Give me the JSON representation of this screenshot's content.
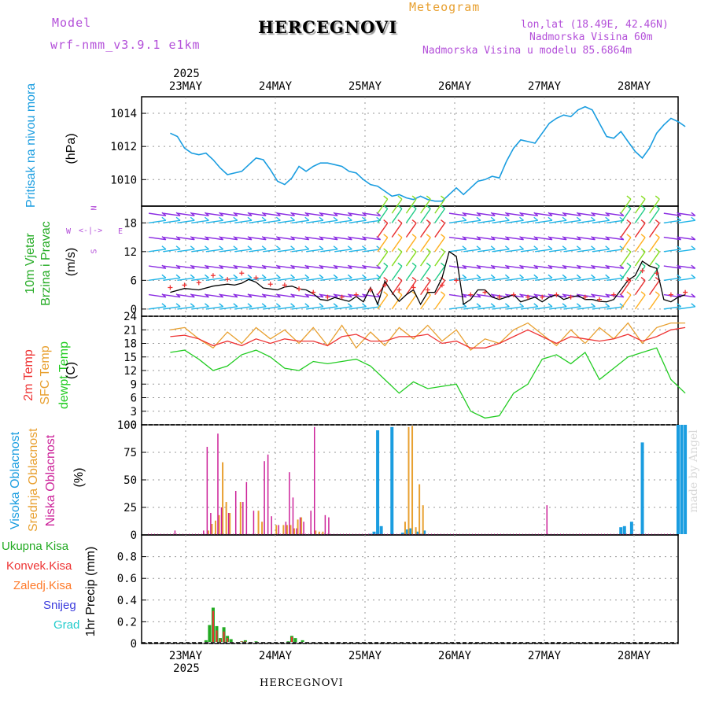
{
  "header": {
    "model_label": "Model",
    "model_name": "wrf-nmm_v3.9.1 e1km",
    "meteogram_label": "Meteogram",
    "station": "HERCEGNOVI",
    "lonlat": "lon,lat (18.49E, 42.46N)",
    "altitude": "Nadmorska Visina 60m",
    "model_altitude": "Nadmorska Visina u modelu 85.6864m",
    "footer_station": "HERCEGNOVI",
    "watermark": "made by Angel"
  },
  "dates": {
    "year": "2025",
    "labels": [
      "23MAY",
      "24MAY",
      "25MAY",
      "26MAY",
      "27MAY",
      "28MAY"
    ]
  },
  "panels": {
    "pressure": {
      "name": "Pritisak na nivou mora",
      "unit": "(hPa)"
    },
    "wind": {
      "name_line1": "10m Vjetar",
      "name_line2": "Brzina i Pravac",
      "unit": "(m/s)",
      "compass": [
        "N",
        "W",
        "E",
        "S"
      ]
    },
    "temp": {
      "name_2m": "2m Temp",
      "name_sfc": "SFC Temp",
      "name_dew": "dewpt Temp",
      "unit": "(C)"
    },
    "cloud": {
      "name_high": "Visoka Oblacnost",
      "name_mid": "Srednja Oblacnost",
      "name_low": "Niska Oblacnost",
      "unit": "(%)"
    },
    "precip": {
      "legend": [
        "Ukupna Kisa",
        "Konvek.Kisa",
        "Zaledj.Kisa",
        "Snijeg",
        "Grad"
      ],
      "unit": "1hr Precip (mm)"
    }
  },
  "colors": {
    "pressure": "#1a9de0",
    "temp2m": "#ee3333",
    "sfc": "#e8a030",
    "dew": "#22cc22",
    "high": "#1a9de0",
    "mid": "#e8a030",
    "low": "#cc2299",
    "total": "#22aa22",
    "konv": "#ee3333",
    "zaled": "#ff7a2a",
    "snow": "#3b3bdd",
    "grad": "#22cccc",
    "wind_purple": "#8a2be2",
    "wind_cyan": "#21b5e8",
    "windspd": "#000000",
    "gust": "#ee3333"
  },
  "chart_data": [
    {
      "type": "line",
      "title": "Pritisak na nivou mora",
      "ylabel": "(hPa)",
      "ylim": [
        1008.4,
        1015
      ],
      "yticks": [
        1010,
        1012,
        1014
      ],
      "series": [
        {
          "name": "Pritisak na nivou mora",
          "x": [
            0,
            2,
            4,
            6,
            8,
            10,
            12,
            14,
            16,
            18,
            20,
            22,
            24,
            26,
            28,
            30,
            32,
            34,
            36,
            38,
            40,
            42,
            44,
            46,
            48,
            50,
            52,
            54,
            56,
            58,
            60,
            62,
            64,
            66,
            68,
            70,
            72,
            74,
            76,
            78,
            80,
            82,
            84,
            86,
            88,
            90,
            92,
            94,
            96,
            98,
            100,
            102,
            104,
            106,
            108,
            110,
            112,
            114,
            116,
            118,
            120,
            122,
            124,
            126,
            128,
            130,
            132,
            134,
            136,
            138,
            140,
            142,
            144
          ],
          "values": [
            1012.8,
            1012.6,
            1011.9,
            1011.6,
            1011.5,
            1011.6,
            1011.2,
            1010.7,
            1010.3,
            1010.4,
            1010.5,
            1010.9,
            1011.3,
            1011.2,
            1010.6,
            1009.9,
            1009.7,
            1010.1,
            1010.8,
            1010.5,
            1010.8,
            1011.0,
            1011.0,
            1010.9,
            1010.8,
            1010.5,
            1010.4,
            1010.0,
            1009.7,
            1009.6,
            1009.3,
            1009.0,
            1009.1,
            1008.9,
            1008.8,
            1009.0,
            1008.8,
            1008.7,
            1008.7,
            1009.1,
            1009.5,
            1009.1,
            1009.5,
            1009.9,
            1010.0,
            1010.2,
            1010.1,
            1011.1,
            1011.9,
            1012.4,
            1012.3,
            1012.2,
            1012.8,
            1013.4,
            1013.7,
            1013.9,
            1013.8,
            1014.2,
            1014.4,
            1014.2,
            1013.4,
            1012.6,
            1012.5,
            1012.9,
            1012.3,
            1011.7,
            1011.3,
            1011.9,
            1012.8,
            1013.3,
            1013.7,
            1013.5,
            1013.2
          ]
        }
      ]
    },
    {
      "type": "line",
      "title": "10m Vjetar Brzina i Pravac",
      "ylabel": "(m/s)",
      "ylim": [
        -1.5,
        21.5
      ],
      "yticks": [
        0,
        6,
        12,
        18
      ],
      "series": [
        {
          "name": "10m Vjetar",
          "x": [
            0,
            4,
            8,
            12,
            16,
            18,
            20,
            22,
            24,
            26,
            28,
            30,
            32,
            34,
            36,
            38,
            40,
            42,
            44,
            46,
            48,
            50,
            52,
            54,
            56,
            58,
            60,
            62,
            64,
            66,
            68,
            70,
            72,
            74,
            76,
            78,
            80,
            82,
            84,
            86,
            88,
            90,
            92,
            94,
            96,
            98,
            100,
            102,
            104,
            106,
            108,
            110,
            112,
            114,
            116,
            118,
            120,
            122,
            124,
            126,
            128,
            130,
            132,
            134,
            136,
            138,
            140,
            142,
            144
          ],
          "values": [
            3.5,
            4.3,
            4.0,
            4.8,
            5.2,
            5.0,
            5.4,
            6.2,
            5.6,
            4.4,
            4.2,
            4.0,
            4.6,
            4.8,
            4.2,
            4.0,
            3.2,
            2.0,
            1.8,
            2.4,
            2.0,
            1.6,
            2.6,
            1.5,
            4.5,
            1.0,
            5.8,
            3.5,
            1.6,
            3.0,
            4.0,
            1.0,
            3.5,
            3.5,
            6.5,
            12.0,
            11.0,
            1.0,
            2.0,
            4.0,
            4.0,
            2.5,
            2.0,
            2.5,
            3.0,
            1.5,
            2.0,
            2.5,
            1.5,
            2.5,
            3.0,
            2.0,
            2.5,
            2.8,
            2.0,
            2.0,
            1.6,
            1.5,
            2.0,
            4.0,
            6.0,
            7.0,
            10.0,
            9.0,
            8.5,
            2.0,
            1.5,
            2.5,
            3.0
          ]
        },
        {
          "name": "gust",
          "x": [
            0,
            4,
            8,
            12,
            16,
            20,
            24,
            28,
            32,
            36,
            40,
            44,
            48,
            52,
            56,
            60,
            64,
            68,
            72,
            76,
            80,
            84,
            88,
            92,
            96,
            100,
            104,
            108,
            112,
            116,
            120,
            124,
            128,
            132,
            136,
            140,
            144
          ],
          "values": [
            4.5,
            5.0,
            5.5,
            7.0,
            6.2,
            7.5,
            6.5,
            5.2,
            5.0,
            4.2,
            3.5,
            2.5,
            2.5,
            3.0,
            4.0,
            5.0,
            4.0,
            4.5,
            4.0,
            5.0,
            6.0,
            3.0,
            3.5,
            2.5,
            3.0,
            2.5,
            2.5,
            3.0,
            2.5,
            2.5,
            2.0,
            3.0,
            6.0,
            8.0,
            7.5,
            3.0,
            3.5
          ]
        }
      ]
    },
    {
      "type": "line",
      "title": "2m Temp / SFC Temp / dewpt Temp",
      "ylabel": "(C)",
      "ylim": [
        0,
        24
      ],
      "yticks": [
        0,
        3,
        6,
        9,
        12,
        15,
        18,
        21,
        24
      ],
      "series": [
        {
          "name": "2m Temp",
          "x": [
            0,
            4,
            8,
            12,
            16,
            20,
            24,
            28,
            32,
            36,
            40,
            44,
            48,
            52,
            56,
            60,
            64,
            68,
            72,
            76,
            80,
            84,
            88,
            92,
            96,
            100,
            104,
            108,
            112,
            116,
            120,
            124,
            128,
            132,
            136,
            140,
            144
          ],
          "values": [
            19.5,
            19.8,
            19.0,
            17.5,
            18.5,
            17.5,
            19.0,
            18.0,
            19.0,
            18.5,
            18.5,
            17.5,
            19.5,
            20.0,
            18.5,
            18.5,
            19.5,
            19.5,
            20.0,
            18.0,
            18.5,
            17.0,
            17.0,
            18.0,
            19.5,
            21.0,
            19.5,
            18.0,
            19.5,
            19.0,
            18.5,
            19.0,
            20.0,
            18.5,
            19.5,
            21.0,
            21.5
          ]
        },
        {
          "name": "SFC Temp",
          "x": [
            0,
            4,
            8,
            12,
            16,
            20,
            24,
            28,
            32,
            36,
            40,
            44,
            48,
            52,
            56,
            60,
            64,
            68,
            72,
            76,
            80,
            84,
            88,
            92,
            96,
            100,
            104,
            108,
            112,
            116,
            120,
            124,
            128,
            132,
            136,
            140,
            144
          ],
          "values": [
            21.0,
            21.5,
            19.0,
            17.0,
            20.5,
            18.0,
            21.5,
            19.0,
            21.0,
            18.0,
            21.5,
            17.5,
            22.0,
            17.0,
            20.5,
            17.5,
            21.5,
            19.0,
            22.0,
            18.5,
            21.0,
            16.5,
            19.0,
            18.0,
            21.0,
            22.5,
            20.0,
            17.5,
            21.0,
            18.0,
            21.5,
            19.0,
            22.5,
            18.0,
            21.5,
            22.5,
            22.5
          ]
        },
        {
          "name": "dewpt Temp",
          "x": [
            0,
            4,
            8,
            12,
            16,
            20,
            24,
            28,
            32,
            36,
            40,
            44,
            48,
            52,
            56,
            60,
            64,
            68,
            72,
            76,
            80,
            84,
            88,
            92,
            96,
            100,
            104,
            108,
            112,
            116,
            120,
            124,
            128,
            132,
            136,
            140,
            144
          ],
          "values": [
            16.0,
            16.5,
            14.5,
            12.0,
            13.0,
            15.5,
            16.5,
            15.0,
            12.5,
            12.0,
            14.0,
            13.5,
            14.0,
            14.5,
            13.0,
            10.0,
            7.0,
            9.5,
            8.0,
            8.5,
            9.0,
            3.0,
            1.5,
            2.0,
            7.0,
            9.0,
            14.5,
            15.5,
            13.5,
            16.0,
            10.0,
            12.5,
            15.0,
            16.0,
            17.0,
            10.0,
            7.0
          ]
        }
      ]
    },
    {
      "type": "bar",
      "title": "Visoka / Srednja / Niska Oblacnost",
      "ylabel": "(%)",
      "ylim": [
        0,
        100
      ],
      "yticks": [
        0,
        25,
        50,
        75,
        100
      ],
      "series": [
        {
          "name": "Visoka Oblacnost",
          "x": [
            56,
            57,
            58,
            59,
            62,
            65,
            66,
            67,
            69,
            70,
            71,
            126,
            127,
            129,
            132,
            142,
            143,
            144
          ],
          "values": [
            1,
            3,
            95,
            8,
            98,
            2,
            5,
            6,
            3,
            1,
            4,
            7,
            8,
            12,
            84,
            100,
            100,
            100
          ]
        },
        {
          "name": "Srednja Oblacnost",
          "x": [
            11,
            12,
            13,
            14,
            15,
            16,
            17,
            20,
            25,
            26,
            30,
            32,
            33,
            34,
            35,
            36,
            37,
            41,
            42,
            43,
            66,
            67,
            68,
            69,
            70,
            71
          ],
          "values": [
            4,
            10,
            13,
            18,
            66,
            30,
            20,
            30,
            22,
            12,
            9,
            9,
            9,
            9,
            6,
            14,
            16,
            4,
            3,
            3,
            12,
            98,
            99,
            7,
            46,
            27
          ]
        },
        {
          "name": "Niska Oblacnost",
          "x": [
            1,
            9,
            10,
            11,
            13,
            14,
            16,
            18,
            20,
            21,
            23,
            26,
            27,
            28,
            30,
            32,
            33,
            34,
            35,
            36,
            37,
            39,
            40,
            43,
            44,
            105
          ],
          "values": [
            4,
            4,
            80,
            20,
            92,
            25,
            20,
            40,
            30,
            48,
            22,
            67,
            73,
            17,
            9,
            12,
            57,
            34,
            6,
            16,
            12,
            22,
            98,
            18,
            16,
            27
          ]
        }
      ]
    },
    {
      "type": "bar",
      "title": "1hr Precip",
      "ylabel": "1hr Precip (mm)",
      "ylim": [
        0,
        1.0
      ],
      "yticks": [
        0,
        0.2,
        0.4,
        0.6,
        0.8
      ],
      "series": [
        {
          "name": "Ukupna Kisa",
          "x": [
            10,
            11,
            12,
            13,
            14,
            15,
            16,
            17,
            20,
            21,
            23,
            24,
            28,
            29,
            30,
            33,
            34,
            35,
            36,
            37
          ],
          "values": [
            0.03,
            0.17,
            0.33,
            0.16,
            0.05,
            0.15,
            0.07,
            0.04,
            0.02,
            0.03,
            0.01,
            0.02,
            0.01,
            0.01,
            0.01,
            0.02,
            0.07,
            0.05,
            0.01,
            0.03
          ]
        },
        {
          "name": "Konvek.Kisa",
          "x": [
            12,
            13,
            14,
            15,
            16,
            20,
            21,
            33,
            34
          ],
          "values": [
            0.3,
            0.12,
            0.04,
            0.11,
            0.05,
            0.02,
            0.02,
            0.01,
            0.06
          ]
        }
      ]
    }
  ]
}
